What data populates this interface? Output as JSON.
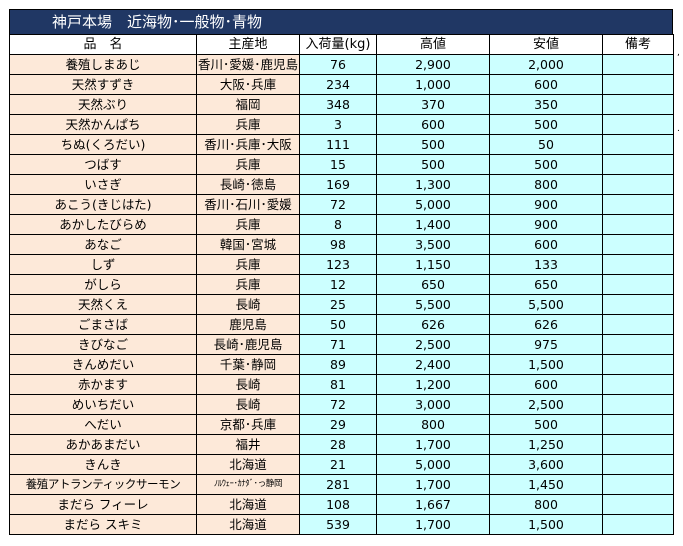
{
  "title": "神戸本場　近海物･一般物･青物",
  "columns": [
    "品　名",
    "主産地",
    "入荷量(kg)",
    "高値",
    "安値",
    "備考"
  ],
  "rows": [
    {
      "name": "養殖しまあじ",
      "origin": "香川･愛媛･鹿児島",
      "qty": "76",
      "high": "2,900",
      "low": "2,000",
      "note": ""
    },
    {
      "name": "天然すずき",
      "origin": "大阪･兵庫",
      "qty": "234",
      "high": "1,000",
      "low": "600",
      "note": ""
    },
    {
      "name": "天然ぶり",
      "origin": "福岡",
      "qty": "348",
      "high": "370",
      "low": "350",
      "note": ""
    },
    {
      "name": "天然かんぱち",
      "origin": "兵庫",
      "qty": "3",
      "high": "600",
      "low": "500",
      "note": ""
    },
    {
      "name": "ちぬ(くろだい)",
      "origin": "香川･兵庫･大阪",
      "qty": "111",
      "high": "500",
      "low": "50",
      "note": ""
    },
    {
      "name": "つばす",
      "origin": "兵庫",
      "qty": "15",
      "high": "500",
      "low": "500",
      "note": ""
    },
    {
      "name": "いさぎ",
      "origin": "長崎･徳島",
      "qty": "169",
      "high": "1,300",
      "low": "800",
      "note": ""
    },
    {
      "name": "あこう(きじはた)",
      "origin": "香川･石川･愛媛",
      "qty": "72",
      "high": "5,000",
      "low": "900",
      "note": ""
    },
    {
      "name": "あかしたびらめ",
      "origin": "兵庫",
      "qty": "8",
      "high": "1,400",
      "low": "900",
      "note": ""
    },
    {
      "name": "あなご",
      "origin": "韓国･宮城",
      "qty": "98",
      "high": "3,500",
      "low": "600",
      "note": ""
    },
    {
      "name": "しず",
      "origin": "兵庫",
      "qty": "123",
      "high": "1,150",
      "low": "133",
      "note": ""
    },
    {
      "name": "がしら",
      "origin": "兵庫",
      "qty": "12",
      "high": "650",
      "low": "650",
      "note": ""
    },
    {
      "name": "天然くえ",
      "origin": "長崎",
      "qty": "25",
      "high": "5,500",
      "low": "5,500",
      "note": ""
    },
    {
      "name": "ごまさば",
      "origin": "鹿児島",
      "qty": "50",
      "high": "626",
      "low": "626",
      "note": ""
    },
    {
      "name": "きびなご",
      "origin": "長崎･鹿児島",
      "qty": "71",
      "high": "2,500",
      "low": "975",
      "note": ""
    },
    {
      "name": "きんめだい",
      "origin": "千葉･静岡",
      "qty": "89",
      "high": "2,400",
      "low": "1,500",
      "note": ""
    },
    {
      "name": "赤かます",
      "origin": "長崎",
      "qty": "81",
      "high": "1,200",
      "low": "600",
      "note": ""
    },
    {
      "name": "めいちだい",
      "origin": "長崎",
      "qty": "72",
      "high": "3,000",
      "low": "2,500",
      "note": ""
    },
    {
      "name": "へだい",
      "origin": "京都･兵庫",
      "qty": "29",
      "high": "800",
      "low": "500",
      "note": ""
    },
    {
      "name": "あかあまだい",
      "origin": "福井",
      "qty": "28",
      "high": "1,700",
      "low": "1,250",
      "note": ""
    },
    {
      "name": "きんき",
      "origin": "北海道",
      "qty": "21",
      "high": "5,000",
      "low": "3,600",
      "note": ""
    },
    {
      "name": "養殖アトランティックサーモン",
      "origin": "ﾉﾙｳｪｰ･ｶﾅﾀﾞ･っ静岡",
      "qty": "281",
      "high": "1,700",
      "low": "1,450",
      "note": ""
    },
    {
      "name": "まだら フィーレ",
      "origin": "北海道",
      "qty": "108",
      "high": "1,667",
      "low": "800",
      "note": ""
    },
    {
      "name": "まだら スキミ",
      "origin": "北海道",
      "qty": "539",
      "high": "1,700",
      "low": "1,500",
      "note": ""
    }
  ],
  "colors": {
    "title_bg": "#203764",
    "name_bg": "#fde9d9",
    "num_bg": "#ccffff"
  }
}
